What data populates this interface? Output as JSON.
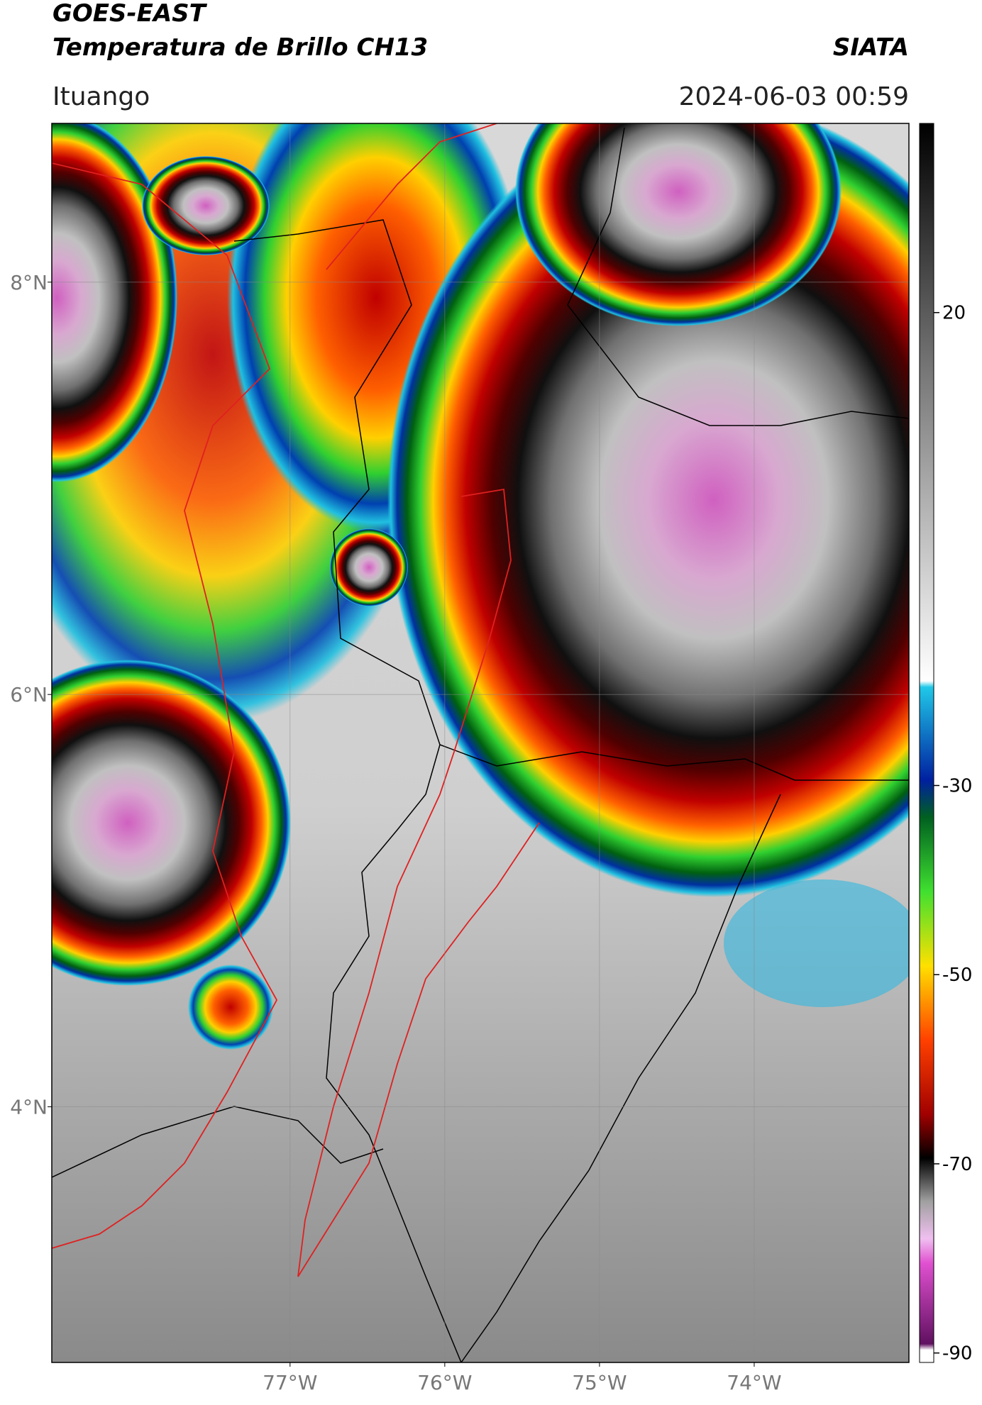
{
  "header": {
    "title": "GOES-EAST",
    "subtitle": "Temperatura de Brillo CH13",
    "source": "SIATA",
    "region": "Ituango",
    "datetime": "2024-06-03 00:59"
  },
  "map": {
    "xlim": [
      -78.54,
      -73.0
    ],
    "ylim": [
      2.76,
      8.77
    ],
    "xticks": [
      {
        "value": -77,
        "label": "77°W"
      },
      {
        "value": -76,
        "label": "76°W"
      },
      {
        "value": -75,
        "label": "75°W"
      },
      {
        "value": -74,
        "label": "74°W"
      }
    ],
    "yticks": [
      {
        "value": 8,
        "label": "8°N"
      },
      {
        "value": 6,
        "label": "6°N"
      },
      {
        "value": 4,
        "label": "4°N"
      }
    ],
    "grid": true
  },
  "colorbar": {
    "lim": [
      -91,
      40
    ],
    "ticks": [
      20,
      -30,
      -50,
      -70,
      -90
    ]
  }
}
